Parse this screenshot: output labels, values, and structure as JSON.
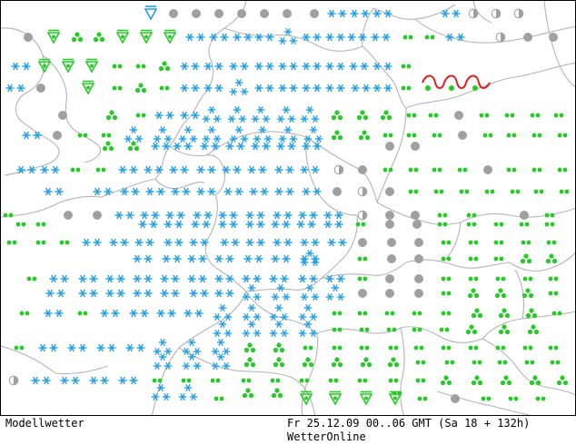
{
  "footer": {
    "product": "Modellwetter",
    "valid_time": "Fr 25.12.09 00..06 GMT (Sa 18 + 132h)",
    "provider": "WetterOnline"
  },
  "colors": {
    "snow": "#1f9fe6",
    "rain": "#22cc22",
    "cloud": "#a0a0a0",
    "border": "#b4b4b4",
    "warmfront": "#e02020"
  },
  "legend_icons": [
    "snow-icon",
    "rain-icon",
    "shower-icon",
    "overcast-icon",
    "partly-cloudy-icon",
    "warm-front-icon"
  ]
}
